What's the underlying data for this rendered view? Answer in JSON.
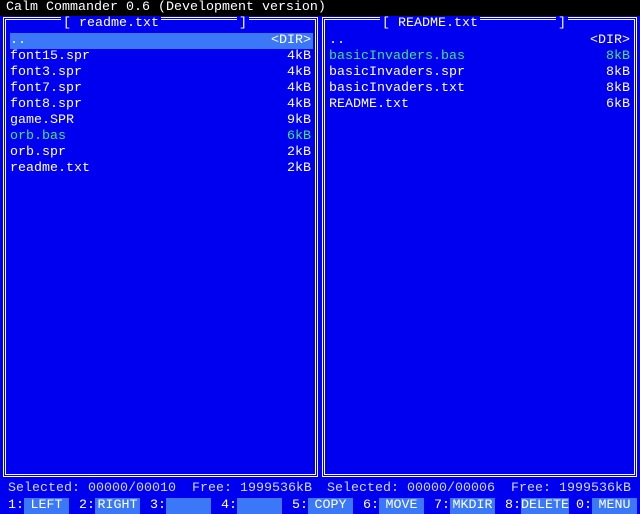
{
  "title": "Calm Commander 0.6 (Development version)",
  "panels": [
    {
      "title": "[ readme.txt",
      "title_end": "]",
      "active": true,
      "rows": [
        {
          "name": "..",
          "size": "<DIR>",
          "selected": true
        },
        {
          "name": "font15.spr",
          "size": "4kB"
        },
        {
          "name": "font3.spr",
          "size": "4kB"
        },
        {
          "name": "font7.spr",
          "size": "4kB"
        },
        {
          "name": "font8.spr",
          "size": "4kB"
        },
        {
          "name": "game.SPR",
          "size": "9kB"
        },
        {
          "name": "orb.bas",
          "size": "6kB",
          "color": "green"
        },
        {
          "name": "orb.spr",
          "size": "2kB"
        },
        {
          "name": "readme.txt",
          "size": "2kB"
        }
      ],
      "status": {
        "selected_label": "Selected:",
        "selected": "00000/00010",
        "free_label": "Free:",
        "free": "1999536kB"
      }
    },
    {
      "title": "[ README.txt",
      "title_end": "]",
      "active": false,
      "rows": [
        {
          "name": "..",
          "size": "<DIR>"
        },
        {
          "name": "basicInvaders.bas",
          "size": "8kB",
          "color": "green"
        },
        {
          "name": "basicInvaders.spr",
          "size": "8kB"
        },
        {
          "name": "basicInvaders.txt",
          "size": "8kB"
        },
        {
          "name": "README.txt",
          "size": "6kB"
        }
      ],
      "status": {
        "selected_label": "Selected:",
        "selected": "00000/00006",
        "free_label": "Free:",
        "free": "1999536kB"
      }
    }
  ],
  "function_keys": [
    {
      "key": "1:",
      "label": "LEFT"
    },
    {
      "key": "2:",
      "label": "RIGHT"
    },
    {
      "key": "3:"
    },
    {
      "key": "4:"
    },
    {
      "key": "5:",
      "label": "COPY"
    },
    {
      "key": "6:",
      "label": "MOVE"
    },
    {
      "key": "7:",
      "label": "MKDIR"
    },
    {
      "key": "8:",
      "label": "DELETE"
    },
    {
      "key": "0:",
      "label": "MENU"
    }
  ]
}
